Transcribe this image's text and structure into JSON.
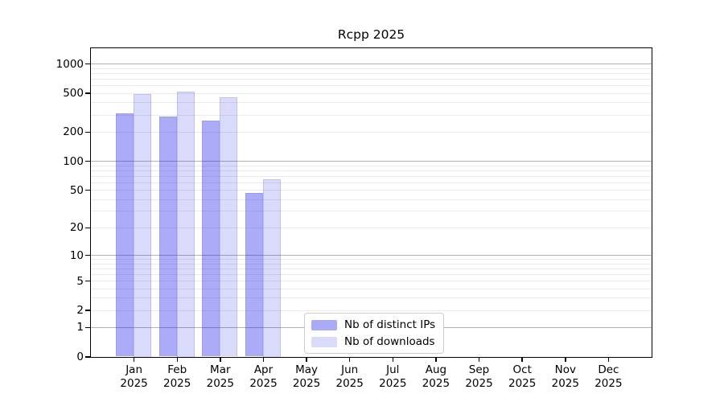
{
  "chart_data": {
    "type": "bar",
    "title": "Rcpp 2025",
    "categories": [
      "Jan 2025",
      "Feb 2025",
      "Mar 2025",
      "Apr 2025",
      "May 2025",
      "Jun 2025",
      "Jul 2025",
      "Aug 2025",
      "Sep 2025",
      "Oct 2025",
      "Nov 2025",
      "Dec 2025"
    ],
    "series": [
      {
        "name": "Nb of distinct IPs",
        "color": "#aaaaf6",
        "fill": "rgba(10,10,235,0.34)",
        "values": [
          310,
          285,
          258,
          46,
          null,
          null,
          null,
          null,
          null,
          null,
          null,
          null
        ]
      },
      {
        "name": "Nb of downloads",
        "color": "#dadaf9",
        "fill": "rgba(10,10,225,0.15)",
        "values": [
          487,
          520,
          452,
          65,
          null,
          null,
          null,
          null,
          null,
          null,
          null,
          null
        ]
      }
    ],
    "yscale": "log1p",
    "yticks": [
      0,
      1,
      2,
      5,
      10,
      20,
      50,
      100,
      200,
      500,
      1000
    ],
    "ylim": [
      0,
      1450
    ],
    "grid": "both",
    "legend_position": "lower center"
  },
  "colors": {
    "background": "#ffffff",
    "axis": "#000000",
    "major_grid": "#b3b3b3",
    "minor_grid": "#ebebeb"
  }
}
